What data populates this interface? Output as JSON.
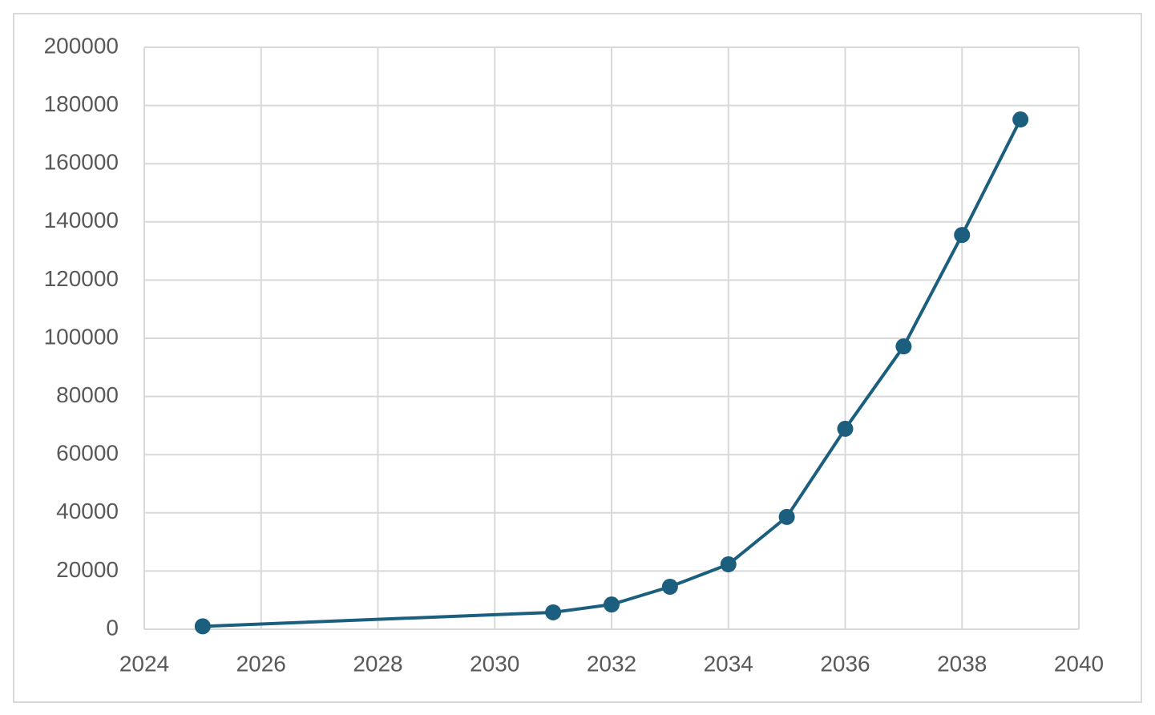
{
  "chart_data": {
    "type": "line",
    "x": [
      2025,
      2031,
      2032,
      2033,
      2034,
      2035,
      2036,
      2037,
      2038,
      2039
    ],
    "values": [
      1000,
      5800,
      8500,
      14600,
      22300,
      38600,
      68900,
      97200,
      135500,
      175200
    ],
    "color": "#1b5e7e",
    "xlim": [
      2024,
      2040
    ],
    "xticks": [
      2024,
      2026,
      2028,
      2030,
      2032,
      2034,
      2036,
      2038,
      2040
    ],
    "ylim": [
      0,
      200000
    ],
    "yticks": [
      0,
      20000,
      40000,
      60000,
      80000,
      100000,
      120000,
      140000,
      160000,
      180000,
      200000
    ],
    "grid": true
  }
}
